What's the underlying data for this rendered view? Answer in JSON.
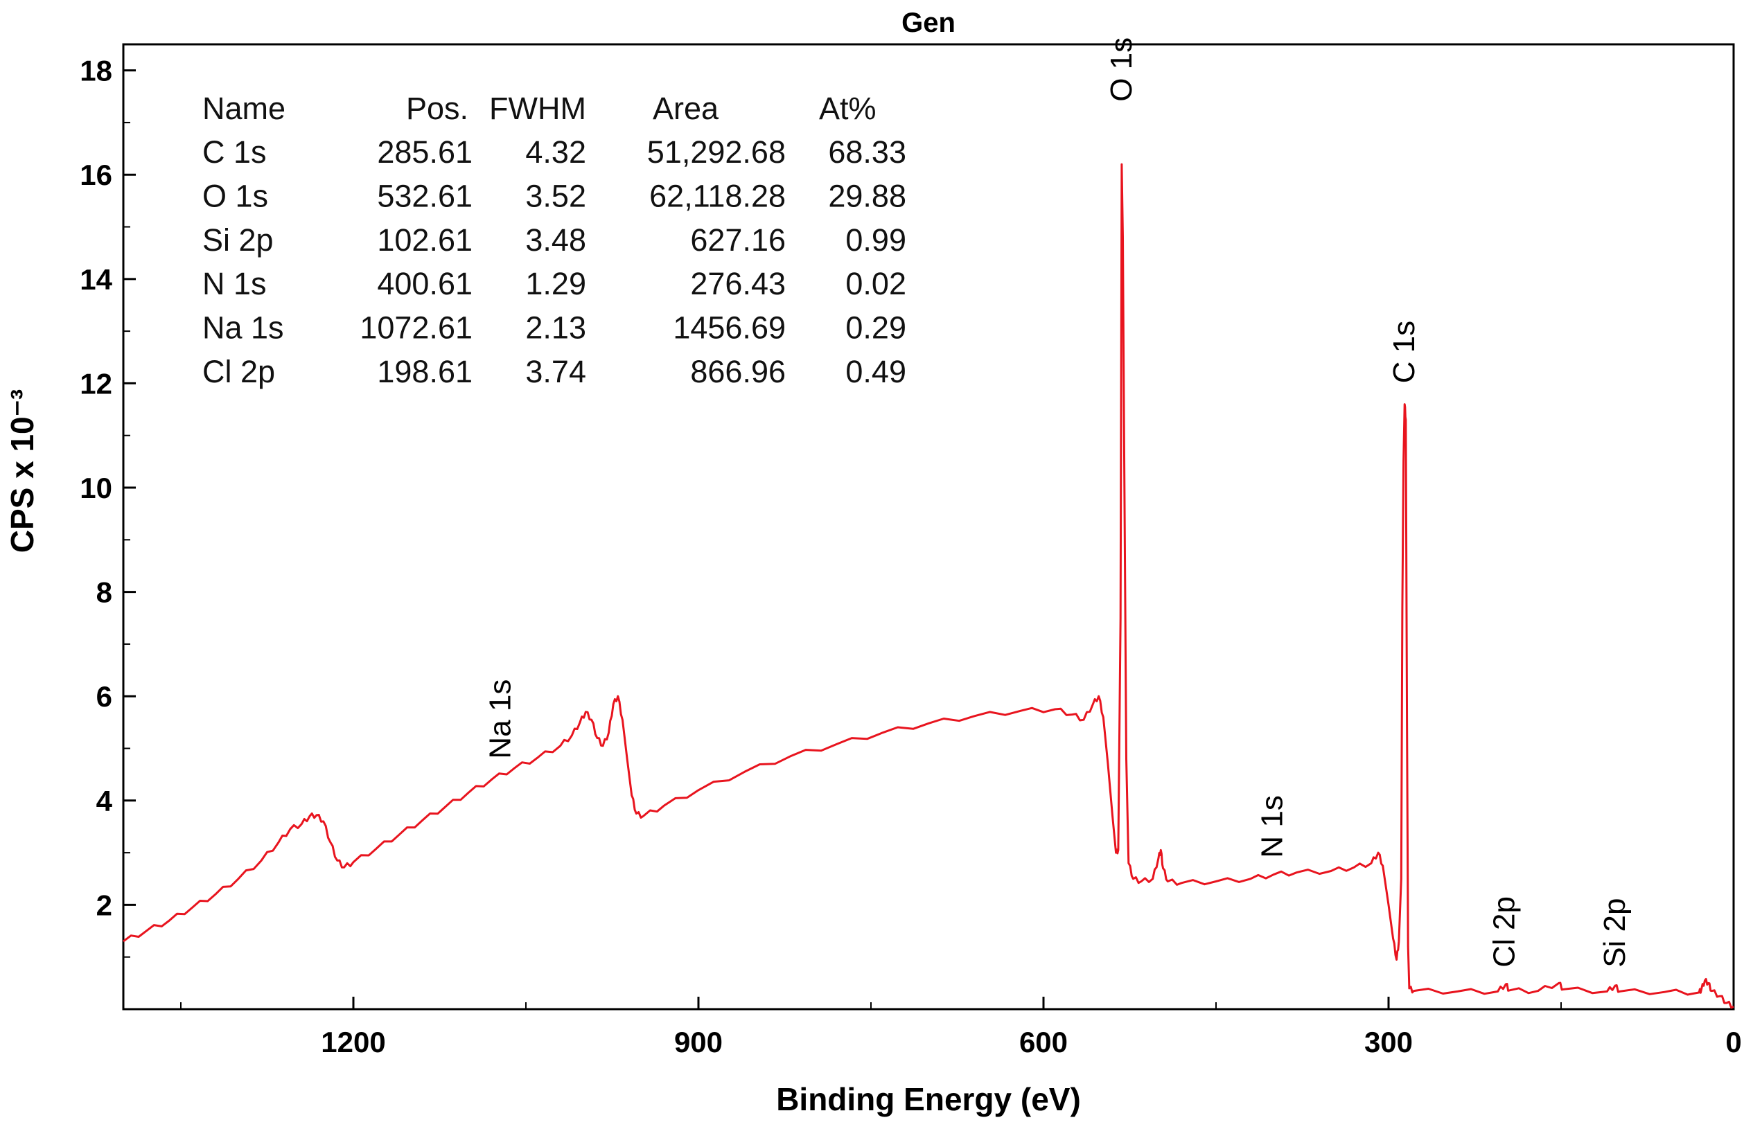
{
  "chart_data": {
    "type": "line",
    "title": "Gen",
    "xlabel": "Binding Energy (eV)",
    "ylabel": "CPS x 10⁻³",
    "xlim": [
      1400,
      0
    ],
    "ylim": [
      0,
      18.5
    ],
    "x_ticks": [
      1200,
      900,
      600,
      300,
      0
    ],
    "y_ticks": [
      2,
      4,
      6,
      8,
      10,
      12,
      14,
      16,
      18
    ],
    "grid": false,
    "line_color": "#e8141e",
    "series": [
      {
        "points": [
          [
            1400,
            1.3
          ],
          [
            1380,
            1.5
          ],
          [
            1360,
            1.7
          ],
          [
            1340,
            1.95
          ],
          [
            1320,
            2.2
          ],
          [
            1300,
            2.5
          ],
          [
            1280,
            2.85
          ],
          [
            1265,
            3.2
          ],
          [
            1255,
            3.45
          ],
          [
            1245,
            3.55
          ],
          [
            1238,
            3.7
          ],
          [
            1232,
            3.72
          ],
          [
            1226,
            3.6
          ],
          [
            1220,
            3.2
          ],
          [
            1214,
            2.85
          ],
          [
            1208,
            2.72
          ],
          [
            1200,
            2.82
          ],
          [
            1180,
            3.08
          ],
          [
            1160,
            3.35
          ],
          [
            1140,
            3.62
          ],
          [
            1120,
            3.88
          ],
          [
            1100,
            4.15
          ],
          [
            1080,
            4.4
          ],
          [
            1060,
            4.62
          ],
          [
            1040,
            4.82
          ],
          [
            1020,
            5.05
          ],
          [
            1010,
            5.25
          ],
          [
            1003,
            5.5
          ],
          [
            998,
            5.7
          ],
          [
            993,
            5.55
          ],
          [
            988,
            5.2
          ],
          [
            983,
            5.05
          ],
          [
            978,
            5.3
          ],
          [
            974,
            5.85
          ],
          [
            970,
            6.0
          ],
          [
            966,
            5.55
          ],
          [
            962,
            4.8
          ],
          [
            958,
            4.1
          ],
          [
            954,
            3.75
          ],
          [
            948,
            3.7
          ],
          [
            930,
            3.9
          ],
          [
            900,
            4.2
          ],
          [
            860,
            4.55
          ],
          [
            820,
            4.85
          ],
          [
            780,
            5.08
          ],
          [
            740,
            5.3
          ],
          [
            700,
            5.48
          ],
          [
            660,
            5.62
          ],
          [
            620,
            5.72
          ],
          [
            590,
            5.75
          ],
          [
            575,
            5.65
          ],
          [
            565,
            5.55
          ],
          [
            557,
            5.85
          ],
          [
            552,
            6.0
          ],
          [
            548,
            5.6
          ],
          [
            544,
            4.7
          ],
          [
            540,
            3.7
          ],
          [
            537,
            3.0
          ],
          [
            535,
            3.05
          ],
          [
            533,
            7.5
          ],
          [
            532,
            16.2
          ],
          [
            531,
            14.8
          ],
          [
            530,
            11.2
          ],
          [
            528,
            4.8
          ],
          [
            526,
            2.8
          ],
          [
            522,
            2.5
          ],
          [
            515,
            2.45
          ],
          [
            505,
            2.5
          ],
          [
            500,
            2.9
          ],
          [
            498,
            3.05
          ],
          [
            496,
            2.7
          ],
          [
            492,
            2.45
          ],
          [
            480,
            2.42
          ],
          [
            450,
            2.45
          ],
          [
            420,
            2.5
          ],
          [
            400,
            2.58
          ],
          [
            380,
            2.62
          ],
          [
            350,
            2.65
          ],
          [
            330,
            2.72
          ],
          [
            315,
            2.8
          ],
          [
            309,
            3.0
          ],
          [
            305,
            2.75
          ],
          [
            300,
            2.0
          ],
          [
            296,
            1.35
          ],
          [
            293,
            0.95
          ],
          [
            291,
            1.3
          ],
          [
            289,
            2.5
          ],
          [
            288,
            7.7
          ],
          [
            287,
            10.5
          ],
          [
            286,
            11.6
          ],
          [
            285,
            11.3
          ],
          [
            284,
            5.5
          ],
          [
            283,
            1.2
          ],
          [
            282,
            0.4
          ],
          [
            278,
            0.35
          ],
          [
            240,
            0.34
          ],
          [
            205,
            0.34
          ],
          [
            198,
            0.48
          ],
          [
            195,
            0.36
          ],
          [
            170,
            0.35
          ],
          [
            152,
            0.5
          ],
          [
            148,
            0.38
          ],
          [
            110,
            0.34
          ],
          [
            103,
            0.45
          ],
          [
            99,
            0.34
          ],
          [
            60,
            0.33
          ],
          [
            30,
            0.32
          ],
          [
            28,
            0.38
          ],
          [
            25,
            0.55
          ],
          [
            22,
            0.5
          ],
          [
            19,
            0.35
          ],
          [
            12,
            0.25
          ],
          [
            6,
            0.12
          ],
          [
            0,
            0.05
          ]
        ]
      }
    ],
    "peak_labels": [
      {
        "text": "O 1s",
        "x": 532,
        "y": 17.4
      },
      {
        "text": "C 1s",
        "x": 286,
        "y": 12.0
      },
      {
        "text": "Na 1s",
        "x": 1072,
        "y": 4.8
      },
      {
        "text": "N 1s",
        "x": 401,
        "y": 2.9
      },
      {
        "text": "Cl 2p",
        "x": 199,
        "y": 0.8
      },
      {
        "text": "Si 2p",
        "x": 103,
        "y": 0.8
      }
    ],
    "table": {
      "headers": [
        "Name",
        "Pos.",
        "FWHM",
        "Area",
        "At%"
      ],
      "rows": [
        [
          "C 1s",
          "285.61",
          "4.32",
          "51,292.68",
          "68.33"
        ],
        [
          "O 1s",
          "532.61",
          "3.52",
          "62,118.28",
          "29.88"
        ],
        [
          "Si 2p",
          "102.61",
          "3.48",
          "627.16",
          "0.99"
        ],
        [
          "N 1s",
          "400.61",
          "1.29",
          "276.43",
          "0.02"
        ],
        [
          "Na 1s",
          "1072.61",
          "2.13",
          "1456.69",
          "0.29"
        ],
        [
          "Cl 2p",
          "198.61",
          "3.74",
          "866.96",
          "0.49"
        ]
      ]
    }
  }
}
